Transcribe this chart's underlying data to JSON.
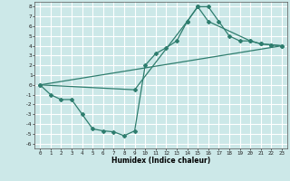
{
  "title": "",
  "xlabel": "Humidex (Indice chaleur)",
  "bg_color": "#cce8e8",
  "grid_color": "#ffffff",
  "line_color": "#2e7d6e",
  "xlim": [
    -0.5,
    23.5
  ],
  "ylim": [
    -6.5,
    8.5
  ],
  "xticks": [
    0,
    1,
    2,
    3,
    4,
    5,
    6,
    7,
    8,
    9,
    10,
    11,
    12,
    13,
    14,
    15,
    16,
    17,
    18,
    19,
    20,
    21,
    22,
    23
  ],
  "yticks": [
    -6,
    -5,
    -4,
    -3,
    -2,
    -1,
    0,
    1,
    2,
    3,
    4,
    5,
    6,
    7,
    8
  ],
  "series1_x": [
    0,
    1,
    2,
    3,
    4,
    5,
    6,
    7,
    8,
    9,
    10,
    11,
    12,
    13,
    14,
    15,
    16,
    17,
    18,
    19,
    20,
    21,
    22,
    23
  ],
  "series1_y": [
    0,
    -1,
    -1.5,
    -1.5,
    -3,
    -4.5,
    -4.7,
    -4.8,
    -5.2,
    -4.7,
    2.0,
    3.2,
    3.8,
    4.5,
    6.5,
    8.0,
    8.0,
    6.5,
    5.0,
    4.5,
    4.5,
    4.2,
    4.1,
    4.0
  ],
  "series2_x": [
    0,
    9,
    14,
    15,
    16,
    20,
    21,
    22,
    23
  ],
  "series2_y": [
    0,
    -0.5,
    6.5,
    8.0,
    6.5,
    4.5,
    4.2,
    4.1,
    4.0
  ],
  "series3_x": [
    0,
    23
  ],
  "series3_y": [
    0,
    4.0
  ]
}
